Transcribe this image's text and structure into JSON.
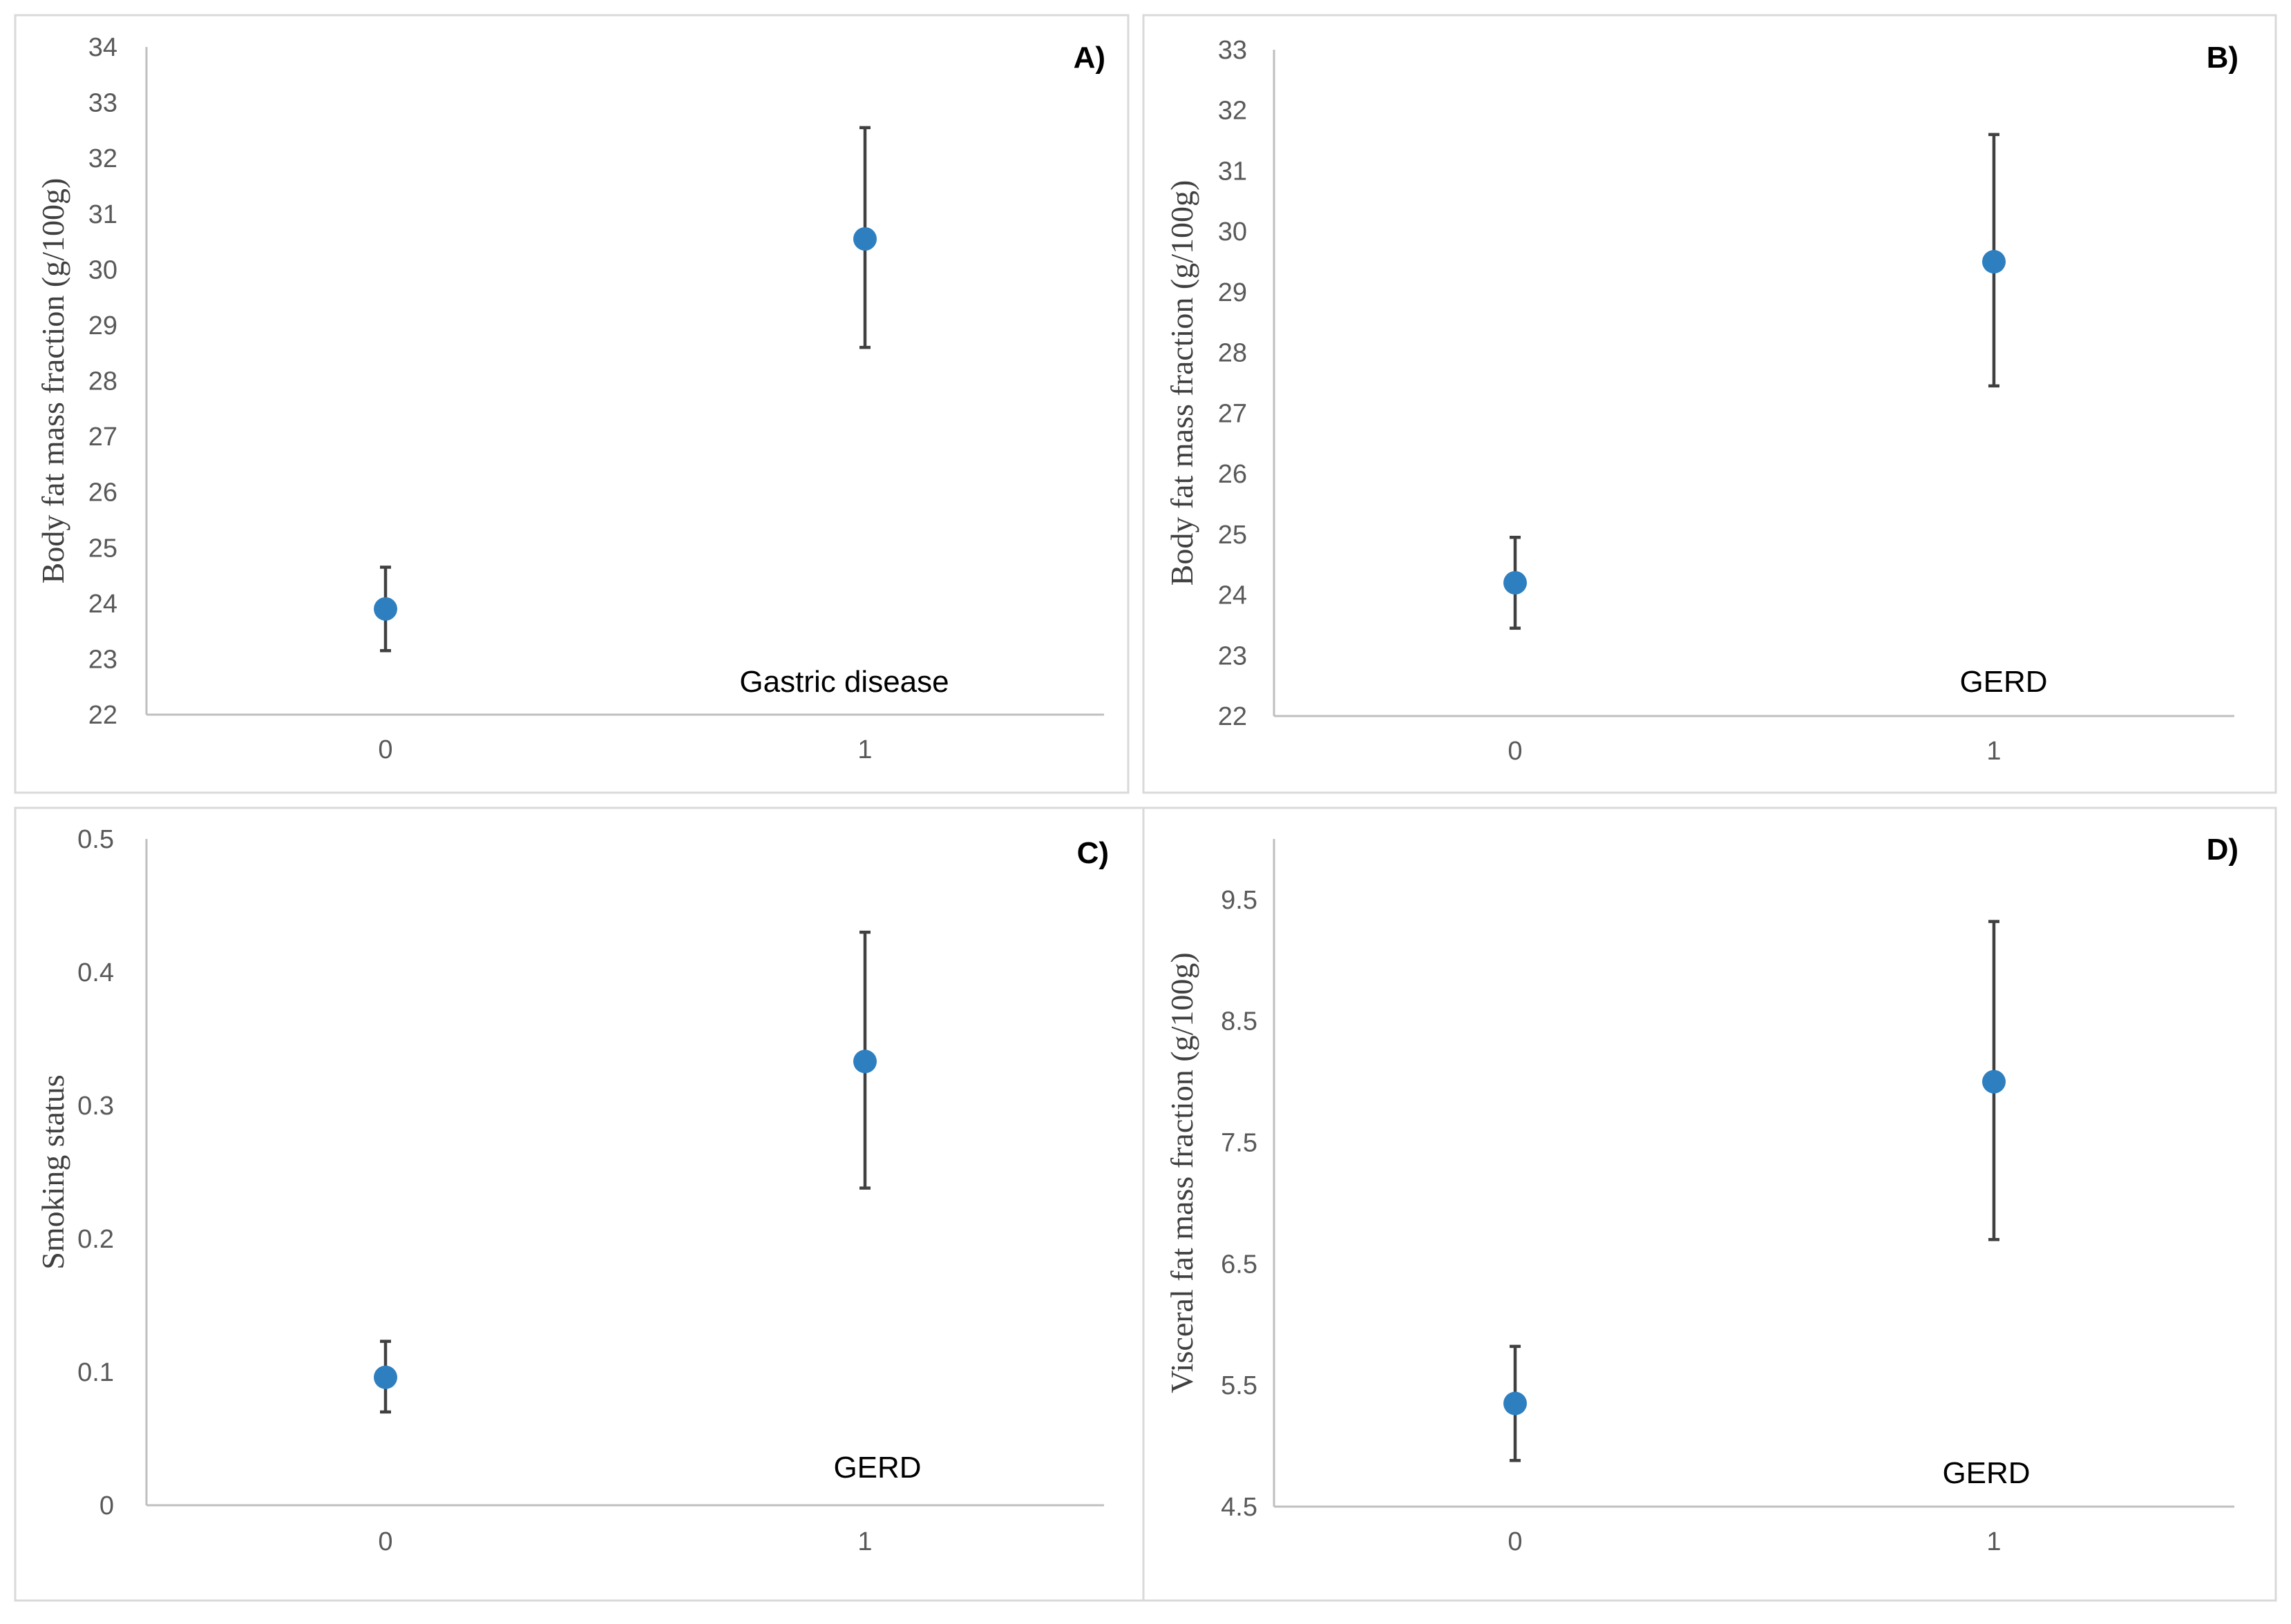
{
  "chart_data": [
    {
      "type": "scatter",
      "panel": "A)",
      "xlabel": "Gastric disease",
      "ylabel": "Body fat mass fraction (g/100g)",
      "categories": [
        "0",
        "1"
      ],
      "ylim": [
        22,
        34
      ],
      "yticks": [
        22,
        23,
        24,
        25,
        26,
        27,
        28,
        29,
        30,
        31,
        32,
        33,
        34
      ],
      "ytick_labels": [
        "22",
        "23",
        "24",
        "25",
        "26",
        "27",
        "28",
        "29",
        "30",
        "31",
        "32",
        "33",
        "34"
      ],
      "values": [
        23.9,
        30.55
      ],
      "error_low": [
        23.15,
        28.6
      ],
      "error_high": [
        24.65,
        32.55
      ]
    },
    {
      "type": "scatter",
      "panel": "B)",
      "xlabel": "GERD",
      "ylabel": "Body fat mass fraction (g/100g)",
      "categories": [
        "0",
        "1"
      ],
      "ylim": [
        22,
        33
      ],
      "yticks": [
        22,
        23,
        24,
        25,
        26,
        27,
        28,
        29,
        30,
        31,
        32,
        33
      ],
      "ytick_labels": [
        "22",
        "23",
        "24",
        "25",
        "26",
        "27",
        "28",
        "29",
        "30",
        "31",
        "32",
        "33"
      ],
      "values": [
        24.2,
        29.5
      ],
      "error_low": [
        23.45,
        27.45
      ],
      "error_high": [
        24.95,
        31.6
      ]
    },
    {
      "type": "scatter",
      "panel": "C)",
      "xlabel": "GERD",
      "ylabel": "Smoking status",
      "categories": [
        "0",
        "1"
      ],
      "ylim": [
        0,
        0.5
      ],
      "yticks": [
        0,
        0.1,
        0.2,
        0.3,
        0.4,
        0.5
      ],
      "ytick_labels": [
        "0",
        "0.1",
        "0.2",
        "0.3",
        "0.4",
        "0.5"
      ],
      "values": [
        0.096,
        0.333
      ],
      "error_low": [
        0.07,
        0.238
      ],
      "error_high": [
        0.123,
        0.43
      ]
    },
    {
      "type": "scatter",
      "panel": "D)",
      "xlabel": "GERD",
      "ylabel": "Visceral fat mass fraction (g/100g)",
      "categories": [
        "0",
        "1"
      ],
      "ylim": [
        4.5,
        10.0
      ],
      "yticks": [
        4.5,
        5.5,
        6.5,
        7.5,
        8.5,
        9.5
      ],
      "ytick_labels": [
        "4.5",
        "5.5",
        "6.5",
        "7.5",
        "8.5",
        "9.5"
      ],
      "values": [
        5.35,
        8.0
      ],
      "error_low": [
        4.88,
        6.7
      ],
      "error_high": [
        5.82,
        9.32
      ]
    }
  ]
}
